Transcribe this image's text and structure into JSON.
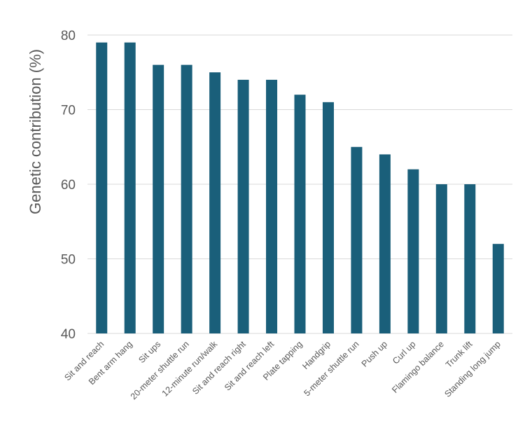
{
  "chart_data": {
    "type": "bar",
    "title": "",
    "xlabel": "",
    "ylabel": "Genetic contribution (%)",
    "ylim": [
      40,
      80
    ],
    "yticks": [
      40,
      50,
      60,
      70,
      80
    ],
    "grid": true,
    "legend": "none",
    "bar_color": "#1a5f7a",
    "categories": [
      "Sit and reach",
      "Bent arm hang",
      "Sit ups",
      "20-meter shuttle run",
      "12-minute run/walk",
      "Sit and reach right",
      "Sit and reach left",
      "Plate tapping",
      "Handgrip",
      "5-meter shuttle run",
      "Push up",
      "Curl up",
      "Flamingo balance",
      "Trunk lift",
      "Standing long jump"
    ],
    "values": [
      79,
      79,
      76,
      76,
      75,
      74,
      74,
      72,
      71,
      65,
      64,
      62,
      60,
      60,
      52
    ]
  }
}
